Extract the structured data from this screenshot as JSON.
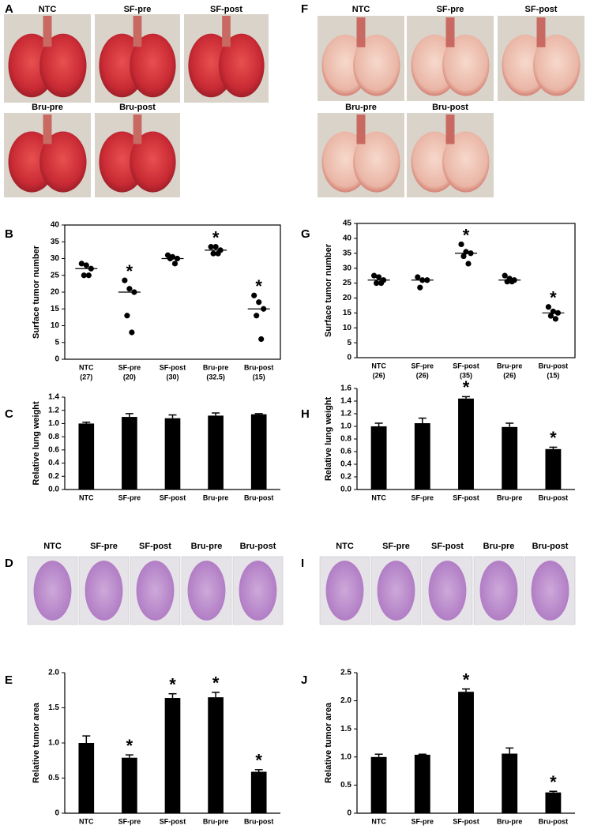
{
  "photo_panels": [
    {
      "letter": "A",
      "labels": [
        "NTC",
        "SF-pre",
        "SF-post",
        "Bru-pre",
        "Bru-post"
      ]
    },
    {
      "letter": "F",
      "labels": [
        "NTC",
        "SF-pre",
        "SF-post",
        "Bru-pre",
        "Bru-post"
      ]
    },
    {
      "letter": "D",
      "labels": [
        "NTC",
        "SF-pre",
        "SF-post",
        "Bru-pre",
        "Bru-post"
      ]
    },
    {
      "letter": "I",
      "labels": [
        "NTC",
        "SF-pre",
        "SF-post",
        "Bru-pre",
        "Bru-post"
      ]
    }
  ],
  "chart_data": [
    {
      "type": "dotplot",
      "panel": "B",
      "ylabel": "Surface tumor number",
      "categories": [
        "NTC",
        "SF-pre",
        "SF-post",
        "Bru-pre",
        "Bru-post"
      ],
      "medians": [
        27,
        20,
        30,
        32.5,
        15
      ],
      "median_labels": [
        "(27)",
        "(20)",
        "(30)",
        "(32.5)",
        "(15)"
      ],
      "points": [
        [
          28.5,
          28,
          27,
          25,
          25
        ],
        [
          23.5,
          21,
          20,
          13,
          8
        ],
        [
          31,
          30.5,
          30,
          30,
          28.5
        ],
        [
          33.5,
          33.5,
          32.5,
          31.5,
          31.5
        ],
        [
          19,
          17,
          15,
          13,
          6
        ]
      ],
      "significant": [
        false,
        true,
        false,
        true,
        true
      ],
      "marker": "*",
      "ylim": [
        0,
        40
      ],
      "yticks": [
        0,
        5,
        10,
        15,
        20,
        25,
        30,
        35,
        40
      ],
      "color": "#000000"
    },
    {
      "type": "bar",
      "panel": "C",
      "ylabel": "Relative lung weight",
      "categories": [
        "NTC",
        "SF-pre",
        "SF-post",
        "Bru-pre",
        "Bru-post"
      ],
      "values": [
        1.0,
        1.1,
        1.08,
        1.12,
        1.14
      ],
      "errors": [
        0.02,
        0.05,
        0.05,
        0.04,
        0.01
      ],
      "ylim": [
        0,
        1.4
      ],
      "yticks": [
        {
          "value": 0,
          "label": "0.0"
        },
        0.2,
        0.4,
        0.6,
        0.8,
        {
          "value": 1,
          "label": "1.0"
        },
        1.2,
        1.4
      ],
      "color": "#000000"
    },
    {
      "type": "bar",
      "panel": "E",
      "ylabel": "Relative tumor area",
      "categories": [
        "NTC",
        "SF-pre",
        "SF-post",
        "Bru-pre",
        "Bru-post"
      ],
      "values": [
        1.0,
        0.79,
        1.64,
        1.65,
        0.59
      ],
      "errors": [
        0.1,
        0.04,
        0.06,
        0.07,
        0.03
      ],
      "significant": [
        false,
        true,
        true,
        true,
        true
      ],
      "marker": "*",
      "ylim": [
        0,
        2
      ],
      "yticks": [
        0,
        0.5,
        {
          "value": 1,
          "label": "1.0"
        },
        1.5,
        {
          "value": 2,
          "label": "2.0"
        }
      ],
      "color": "#000000"
    },
    {
      "type": "dotplot",
      "panel": "G",
      "ylabel": "Surface tumor number",
      "categories": [
        "NTC",
        "SF-pre",
        "SF-post",
        "Bru-pre",
        "Bru-post"
      ],
      "medians": [
        26,
        26,
        35,
        26,
        15
      ],
      "median_labels": [
        "(26)",
        "(26)",
        "(35)",
        "(26)",
        "(15)"
      ],
      "points": [
        [
          27.5,
          27,
          26,
          25,
          25
        ],
        [
          27,
          26,
          26,
          23.5
        ],
        [
          38,
          35.5,
          35,
          34,
          31.5
        ],
        [
          27.5,
          26.5,
          26,
          25.5,
          25.5
        ],
        [
          17,
          15.5,
          15,
          14,
          13
        ]
      ],
      "significant": [
        false,
        false,
        true,
        false,
        true
      ],
      "marker": "*",
      "ylim": [
        0,
        45
      ],
      "yticks": [
        0,
        5,
        10,
        15,
        20,
        25,
        30,
        35,
        40,
        45
      ],
      "color": "#000000"
    },
    {
      "type": "bar",
      "panel": "H",
      "ylabel": "Relative lung weight",
      "categories": [
        "NTC",
        "SF-pre",
        "SF-post",
        "Bru-pre",
        "Bru-post"
      ],
      "values": [
        1.0,
        1.05,
        1.44,
        0.99,
        0.64
      ],
      "errors": [
        0.05,
        0.08,
        0.03,
        0.06,
        0.03
      ],
      "significant": [
        false,
        false,
        true,
        false,
        true
      ],
      "marker": "*",
      "ylim": [
        0,
        1.6
      ],
      "yticks": [
        {
          "value": 0,
          "label": "0.0"
        },
        0.2,
        0.4,
        0.6,
        0.8,
        {
          "value": 1,
          "label": "1.0"
        },
        1.2,
        1.4,
        1.6
      ],
      "color": "#000000"
    },
    {
      "type": "bar",
      "panel": "J",
      "ylabel": "Relative tumor area",
      "categories": [
        "NTC",
        "SF-pre",
        "SF-post",
        "Bru-pre",
        "Bru-post"
      ],
      "values": [
        1.0,
        1.04,
        2.16,
        1.06,
        0.37
      ],
      "errors": [
        0.05,
        0.01,
        0.05,
        0.1,
        0.02
      ],
      "significant": [
        false,
        false,
        true,
        false,
        true
      ],
      "marker": "*",
      "ylim": [
        0,
        2.5
      ],
      "yticks": [
        0,
        0.5,
        {
          "value": 1,
          "label": "1.0"
        },
        1.5,
        {
          "value": 2,
          "label": "2.0"
        },
        2.5
      ],
      "color": "#000000"
    }
  ]
}
